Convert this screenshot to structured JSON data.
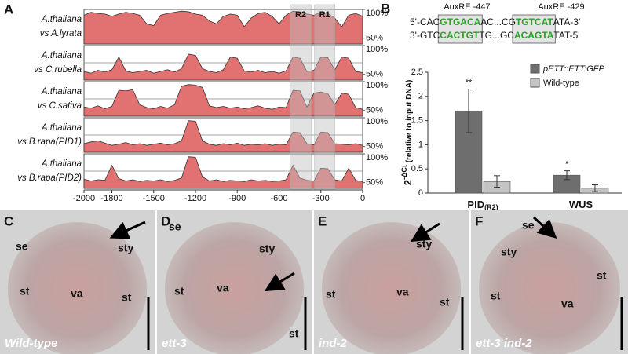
{
  "panel_letters": [
    "A",
    "B",
    "C",
    "D",
    "E",
    "F"
  ],
  "chart_data": [
    {
      "type": "area",
      "x": [
        -2000,
        -1950,
        -1900,
        -1850,
        -1800,
        -1750,
        -1700,
        -1650,
        -1600,
        -1550,
        -1500,
        -1450,
        -1400,
        -1350,
        -1300,
        -1250,
        -1200,
        -1150,
        -1100,
        -1050,
        -1000,
        -950,
        -900,
        -850,
        -800,
        -750,
        -700,
        -650,
        -600,
        -550,
        -500,
        -450,
        -400,
        -350,
        -300,
        -250,
        -200,
        -150,
        -100,
        -50,
        0
      ],
      "xlim": [
        -2000,
        0
      ],
      "xticks": [
        -2000,
        -1800,
        -1500,
        -1200,
        -900,
        -600,
        -300,
        0
      ],
      "ylim": [
        40,
        100
      ],
      "yticks": [
        {
          "value": 100,
          "label": "100%"
        },
        {
          "value": 50,
          "label": "50%"
        }
      ],
      "color": "#e27272",
      "regions": [
        {
          "label": "R2",
          "range": [
            -520,
            -370
          ]
        },
        {
          "label": "R1",
          "range": [
            -345,
            -200
          ]
        }
      ],
      "series": [
        {
          "name": [
            "A.thaliana",
            "vs A.lyrata"
          ],
          "values": [
            90,
            95,
            93,
            92,
            88,
            92,
            95,
            93,
            90,
            75,
            72,
            90,
            93,
            95,
            97,
            96,
            92,
            90,
            80,
            75,
            88,
            92,
            90,
            70,
            85,
            93,
            95,
            88,
            75,
            90,
            97,
            95,
            92,
            90,
            95,
            93,
            85,
            70,
            90,
            93,
            88
          ]
        },
        {
          "name": [
            "A.thaliana",
            "vs C.rubella"
          ],
          "values": [
            55,
            52,
            57,
            54,
            58,
            80,
            56,
            53,
            55,
            57,
            52,
            55,
            58,
            54,
            60,
            85,
            83,
            60,
            55,
            53,
            58,
            80,
            78,
            56,
            54,
            57,
            53,
            55,
            52,
            56,
            80,
            78,
            55,
            57,
            80,
            79,
            58,
            80,
            78,
            55,
            53
          ]
        },
        {
          "name": [
            "A.thaliana",
            "vs C.sativa"
          ],
          "values": [
            56,
            54,
            58,
            53,
            57,
            85,
            84,
            86,
            60,
            55,
            53,
            57,
            54,
            60,
            92,
            95,
            94,
            90,
            58,
            55,
            57,
            54,
            56,
            53,
            55,
            58,
            54,
            52,
            56,
            55,
            85,
            84,
            56,
            80,
            82,
            79,
            60,
            80,
            78,
            55,
            52
          ]
        },
        {
          "name": [
            "A.thaliana",
            "vs B.rapa(PID1)"
          ],
          "values": [
            55,
            58,
            60,
            56,
            52,
            54,
            57,
            53,
            55,
            52,
            54,
            56,
            53,
            55,
            60,
            95,
            94,
            60,
            54,
            52,
            55,
            53,
            56,
            52,
            54,
            53,
            55,
            52,
            54,
            53,
            75,
            74,
            55,
            53,
            75,
            74,
            55,
            54,
            53,
            55,
            52
          ]
        },
        {
          "name": [
            "A.thaliana",
            "vs B.rapa(PID2)"
          ],
          "values": [
            56,
            53,
            55,
            54,
            80,
            57,
            53,
            55,
            52,
            54,
            53,
            55,
            52,
            54,
            58,
            95,
            94,
            60,
            53,
            55,
            52,
            54,
            53,
            52,
            55,
            53,
            54,
            52,
            53,
            55,
            80,
            58,
            54,
            53,
            75,
            74,
            55,
            53,
            75,
            54,
            52
          ]
        }
      ]
    },
    {
      "type": "bar",
      "ylabel": {
        "base": "2",
        "superscript": "-ΔCt",
        "text": " (relative to input DNA)"
      },
      "categories": [
        {
          "name": "PID",
          "subscript": "(R2)"
        },
        {
          "name": "WUS"
        }
      ],
      "ylim": [
        0,
        2.5
      ],
      "yticks": [
        0,
        0.5,
        1,
        1.5,
        2,
        2.5
      ],
      "legend": "top-right",
      "series": [
        {
          "name": "pETT::ETT:GFP",
          "color": "#6e6e6e",
          "values": [
            1.7,
            0.37
          ],
          "errors": [
            0.45,
            0.09
          ],
          "annotations": [
            "**",
            "*"
          ]
        },
        {
          "name": "Wild-type",
          "color": "#c4c4c4",
          "values": [
            0.24,
            0.1
          ],
          "errors": [
            0.12,
            0.07
          ]
        }
      ]
    }
  ],
  "sequence": {
    "titles": [
      "AuxRE -447",
      "AuxRE -429"
    ],
    "lines": [
      [
        "5'-CAC",
        "GTGACA",
        "AC...CG",
        "TGTCAT",
        "ATA-3'"
      ],
      [
        "3'-GTC",
        "CACTGT",
        "TG...GC",
        "ACAGTA",
        "TAT-5'"
      ]
    ]
  },
  "micrographs": [
    {
      "caption": "Wild-type",
      "labels": [
        "se",
        "sty",
        "st",
        "va",
        "st"
      ]
    },
    {
      "caption": "ett-3",
      "labels": [
        "se",
        "sty",
        "st",
        "va",
        "st"
      ]
    },
    {
      "caption": "ind-2",
      "labels": [
        "sty",
        "st",
        "va",
        "st"
      ]
    },
    {
      "caption": "ett-3 ind-2",
      "labels": [
        "se",
        "sty",
        "st",
        "va",
        "st"
      ]
    }
  ]
}
